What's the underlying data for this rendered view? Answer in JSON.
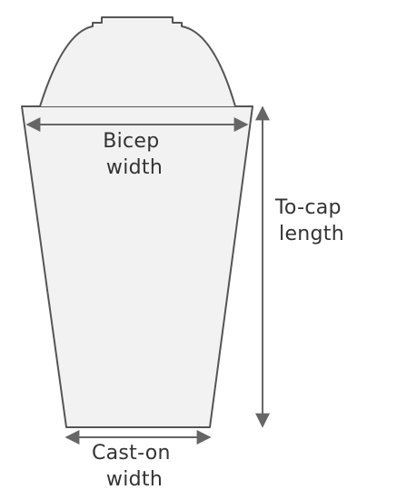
{
  "labels": {
    "bicep_width": [
      "Bicep",
      "width"
    ],
    "to_cap_length": [
      "To-cap",
      "length"
    ],
    "cast_on_width": [
      "Cast-on",
      "width"
    ]
  },
  "colors": {
    "fill": "#f2f2f2",
    "outline": "#555555",
    "arrow": "#666666",
    "text": "#333333"
  }
}
